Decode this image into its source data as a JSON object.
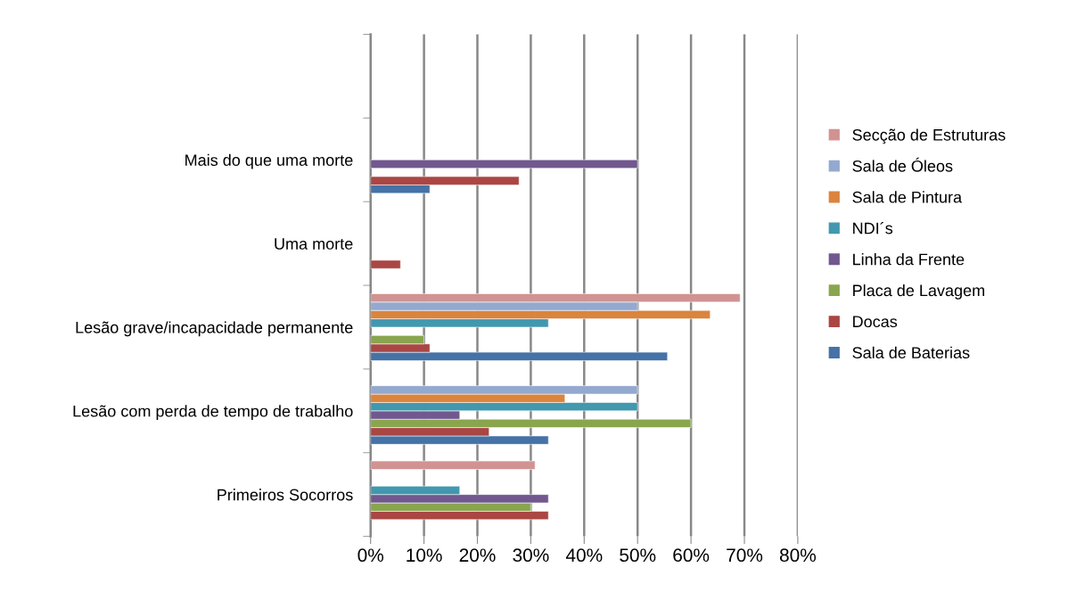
{
  "chart_data": {
    "type": "bar",
    "orientation": "horizontal",
    "categories": [
      null,
      "Mais do que uma morte",
      "Uma morte",
      "Lesão grave/incapacidade permanente",
      "Lesão com perda de tempo de trabalho",
      "Primeiros Socorros"
    ],
    "series": [
      {
        "name": "Sala de Baterias",
        "color": "#4572a7",
        "values": [
          null,
          11.1,
          null,
          55.6,
          33.3,
          null
        ]
      },
      {
        "name": "Docas",
        "color": "#aa4643",
        "values": [
          null,
          27.8,
          5.6,
          11.1,
          22.2,
          33.3
        ]
      },
      {
        "name": "Placa de Lavagem",
        "color": "#89a54e",
        "values": [
          null,
          null,
          null,
          10,
          60,
          30
        ]
      },
      {
        "name": "Linha da Frente",
        "color": "#71588f",
        "values": [
          null,
          50,
          null,
          null,
          16.7,
          33.3
        ]
      },
      {
        "name": "NDI´s",
        "color": "#4198af",
        "values": [
          null,
          null,
          null,
          33.3,
          50,
          16.7
        ]
      },
      {
        "name": "Sala de Pintura",
        "color": "#db843d",
        "values": [
          null,
          null,
          null,
          63.6,
          36.4,
          null
        ]
      },
      {
        "name": "Sala de Óleos",
        "color": "#93a9cf",
        "values": [
          null,
          null,
          null,
          50,
          50,
          null
        ]
      },
      {
        "name": "Secção de Estruturas",
        "color": "#d19392",
        "values": [
          null,
          null,
          null,
          69.2,
          null,
          30.8
        ]
      }
    ],
    "xlim": [
      0,
      80
    ],
    "xticks": [
      {
        "value": 0,
        "label": "0%"
      },
      {
        "value": 10,
        "label": "10%"
      },
      {
        "value": 20,
        "label": "20%"
      },
      {
        "value": 30,
        "label": "30%"
      },
      {
        "value": 40,
        "label": "40%"
      },
      {
        "value": 50,
        "label": "50%"
      },
      {
        "value": 60,
        "label": "60%"
      },
      {
        "value": 70,
        "label": "70%"
      },
      {
        "value": 80,
        "label": "80%"
      }
    ],
    "grid": "x",
    "legend": "right"
  }
}
